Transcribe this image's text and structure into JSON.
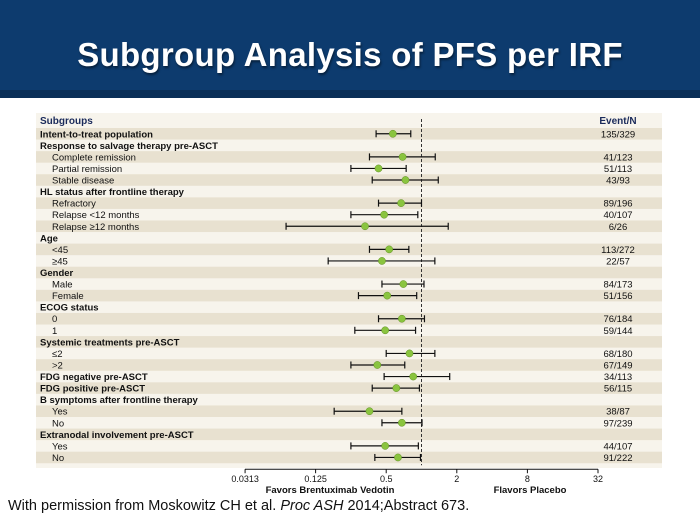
{
  "header": {
    "title": "Subgroup Analysis of PFS per IRF"
  },
  "colors": {
    "header_bg": "#0d3b6e",
    "row_band": "#e8e1d0",
    "point": "#8ac43f",
    "line": "#111111"
  },
  "citation": {
    "prefix": "With permission from Moskowitz CH et al. ",
    "journal": "Proc ASH",
    "suffix": " 2014;Abstract 673."
  },
  "chart_data": {
    "type": "forest",
    "column_headers": {
      "subgroups": "Subgroups",
      "events": "Event/N"
    },
    "x_scale": "log2",
    "x_ticks": [
      0.0313,
      0.125,
      0.5,
      2,
      8,
      32
    ],
    "x_tick_labels": [
      "0.0313",
      "0.125",
      "0.5",
      "2",
      "8",
      "32"
    ],
    "reference_line": 1,
    "x_left_label": "Favors Brentuximab Vedotin",
    "x_right_label": "Flavors Placebo",
    "rows": [
      {
        "label": "Intent-to-treat population",
        "kind": "bold",
        "hr": 0.57,
        "lo": 0.41,
        "hi": 0.81,
        "events": "135/329"
      },
      {
        "label": "Response to salvage therapy pre-ASCT",
        "kind": "header"
      },
      {
        "label": "Complete remission",
        "kind": "sub",
        "hr": 0.69,
        "lo": 0.36,
        "hi": 1.31,
        "events": "41/123"
      },
      {
        "label": "Partial remission",
        "kind": "sub",
        "hr": 0.43,
        "lo": 0.25,
        "hi": 0.74,
        "events": "51/113"
      },
      {
        "label": "Stable disease",
        "kind": "sub",
        "hr": 0.73,
        "lo": 0.38,
        "hi": 1.39,
        "events": "43/93"
      },
      {
        "label": "HL status after frontline therapy",
        "kind": "header"
      },
      {
        "label": "Refractory",
        "kind": "sub",
        "hr": 0.67,
        "lo": 0.43,
        "hi": 1.0,
        "events": "89/196"
      },
      {
        "label": "Relapse <12 months",
        "kind": "sub",
        "hr": 0.48,
        "lo": 0.25,
        "hi": 0.93,
        "events": "40/107"
      },
      {
        "label": "Relapse ≥12 months",
        "kind": "sub",
        "hr": 0.33,
        "lo": 0.07,
        "hi": 1.69,
        "events": "6/26"
      },
      {
        "label": "Age",
        "kind": "header"
      },
      {
        "label": "<45",
        "kind": "sub",
        "hr": 0.53,
        "lo": 0.36,
        "hi": 0.78,
        "events": "113/272"
      },
      {
        "label": "≥45",
        "kind": "sub",
        "hr": 0.46,
        "lo": 0.16,
        "hi": 1.3,
        "events": "22/57"
      },
      {
        "label": "Gender",
        "kind": "header"
      },
      {
        "label": "Male",
        "kind": "sub",
        "hr": 0.7,
        "lo": 0.46,
        "hi": 1.05,
        "events": "84/173"
      },
      {
        "label": "Female",
        "kind": "sub",
        "hr": 0.51,
        "lo": 0.29,
        "hi": 0.91,
        "events": "51/156"
      },
      {
        "label": "ECOG status",
        "kind": "header"
      },
      {
        "label": "0",
        "kind": "sub",
        "hr": 0.68,
        "lo": 0.43,
        "hi": 1.06,
        "events": "76/184"
      },
      {
        "label": "1",
        "kind": "sub",
        "hr": 0.49,
        "lo": 0.27,
        "hi": 0.89,
        "events": "59/144"
      },
      {
        "label": "Systemic treatments pre-ASCT",
        "kind": "header"
      },
      {
        "label": "≤2",
        "kind": "sub",
        "hr": 0.79,
        "lo": 0.5,
        "hi": 1.3,
        "events": "68/180"
      },
      {
        "label": ">2",
        "kind": "sub",
        "hr": 0.42,
        "lo": 0.25,
        "hi": 0.72,
        "events": "67/149"
      },
      {
        "label": "FDG negative pre-ASCT",
        "kind": "bold",
        "hr": 0.85,
        "lo": 0.48,
        "hi": 1.74,
        "events": "34/113"
      },
      {
        "label": "FDG positive pre-ASCT",
        "kind": "bold",
        "hr": 0.61,
        "lo": 0.38,
        "hi": 0.96,
        "events": "56/115"
      },
      {
        "label": "B symptoms after frontline therapy",
        "kind": "header"
      },
      {
        "label": "Yes",
        "kind": "sub",
        "hr": 0.36,
        "lo": 0.18,
        "hi": 0.68,
        "events": "38/87"
      },
      {
        "label": "No",
        "kind": "sub",
        "hr": 0.68,
        "lo": 0.46,
        "hi": 1.01,
        "events": "97/239"
      },
      {
        "label": "Extranodal involvement pre-ASCT",
        "kind": "header"
      },
      {
        "label": "Yes",
        "kind": "sub",
        "hr": 0.49,
        "lo": 0.25,
        "hi": 0.94,
        "events": "44/107"
      },
      {
        "label": "No",
        "kind": "sub",
        "hr": 0.63,
        "lo": 0.4,
        "hi": 0.98,
        "events": "91/222"
      }
    ]
  }
}
